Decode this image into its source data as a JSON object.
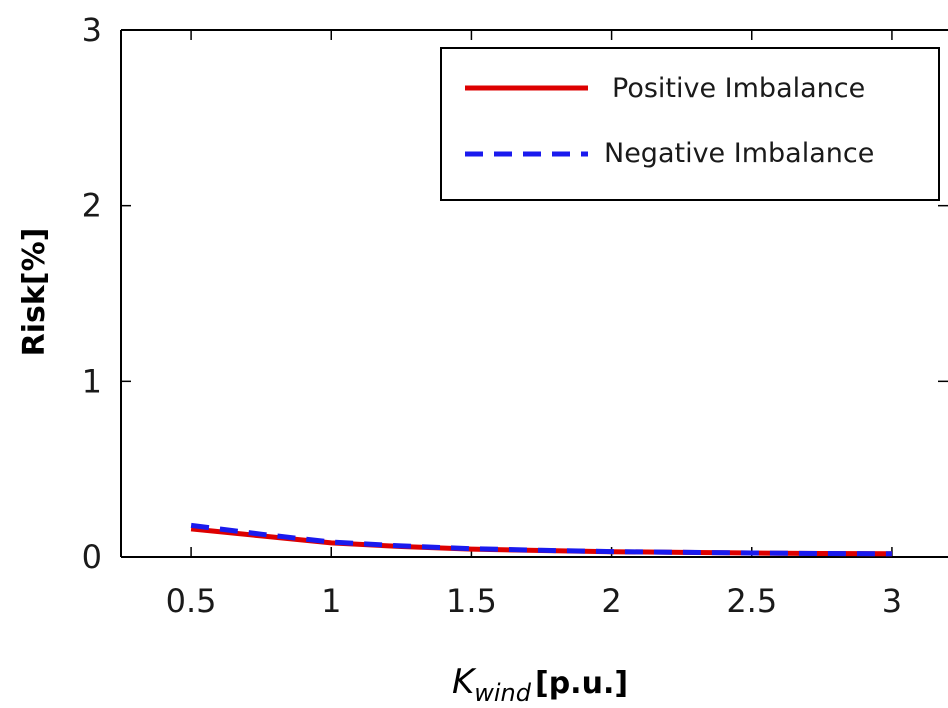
{
  "chart_data": {
    "type": "line",
    "title": "",
    "xlabel": {
      "main": "K",
      "sub": "wind",
      "unit": "[p.u.]"
    },
    "ylabel": "Risk[%]",
    "xlim": [
      0.25,
      3.2
    ],
    "ylim": [
      0,
      3
    ],
    "xticks": [
      0.5,
      1,
      1.5,
      2,
      2.5,
      3
    ],
    "xtick_labels": [
      "0.5",
      "1",
      "1.5",
      "2",
      "2.5",
      "3"
    ],
    "yticks": [
      0,
      1,
      2,
      3
    ],
    "ytick_labels": [
      "0",
      "1",
      "2",
      "3"
    ],
    "grid": false,
    "legend_position": "top-right",
    "series": [
      {
        "name": "Positive Imbalance",
        "color": "#dd0000",
        "style": "solid",
        "x": [
          0.5,
          0.75,
          1.0,
          1.25,
          1.5,
          1.75,
          2.0,
          2.25,
          2.5,
          2.75,
          3.0
        ],
        "y": [
          0.16,
          0.12,
          0.08,
          0.06,
          0.045,
          0.037,
          0.03,
          0.026,
          0.023,
          0.02,
          0.018
        ]
      },
      {
        "name": "Negative Imbalance",
        "color": "#1a1aee",
        "style": "dashed",
        "x": [
          0.5,
          0.75,
          1.0,
          1.25,
          1.5,
          1.75,
          2.0,
          2.25,
          2.5,
          2.75,
          3.0
        ],
        "y": [
          0.18,
          0.13,
          0.085,
          0.063,
          0.047,
          0.038,
          0.031,
          0.027,
          0.023,
          0.02,
          0.018
        ]
      }
    ]
  }
}
